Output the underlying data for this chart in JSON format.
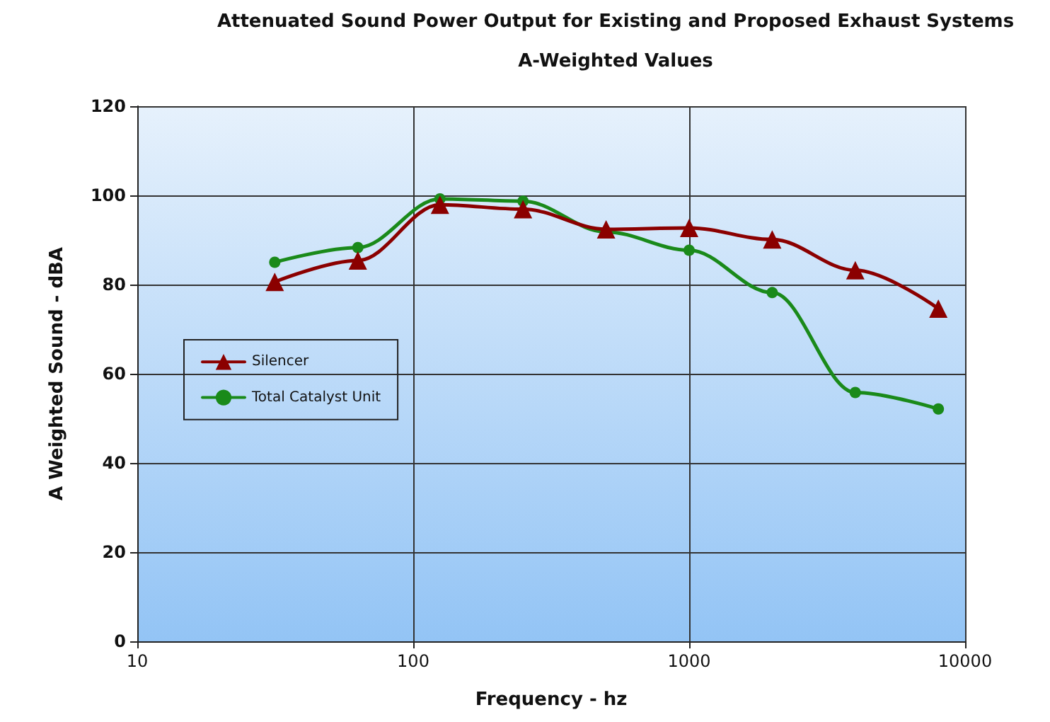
{
  "chart_data": {
    "type": "line",
    "title": "Attenuated Sound Power Output for Existing and Proposed Exhaust Systems",
    "subtitle": "A-Weighted Values",
    "xlabel": "Frequency - hz",
    "ylabel": "A Weighted Sound - dBA",
    "x": [
      31.5,
      63,
      125,
      250,
      500,
      1000,
      2000,
      4000,
      8000
    ],
    "series": [
      {
        "name": "Silencer",
        "color": "#8b0000",
        "marker": "triangle",
        "values": [
          80.6,
          85.4,
          97.9,
          96.9,
          92.4,
          92.7,
          90.1,
          83.2,
          74.6
        ]
      },
      {
        "name": "Total Catalyst Unit",
        "color": "#1a8a1a",
        "marker": "circle",
        "values": [
          85,
          88.3,
          99.2,
          98.7,
          91.8,
          87.7,
          78.2,
          55.8,
          52.1
        ]
      }
    ],
    "log": "x",
    "xlim": [
      10,
      10000
    ],
    "xticks": [
      10,
      100,
      1000,
      10000
    ],
    "ylim": [
      0,
      120
    ],
    "yticks": [
      0,
      20,
      40,
      60,
      80,
      100,
      120
    ],
    "grid": true,
    "legend": "left",
    "line_style": "solid"
  }
}
